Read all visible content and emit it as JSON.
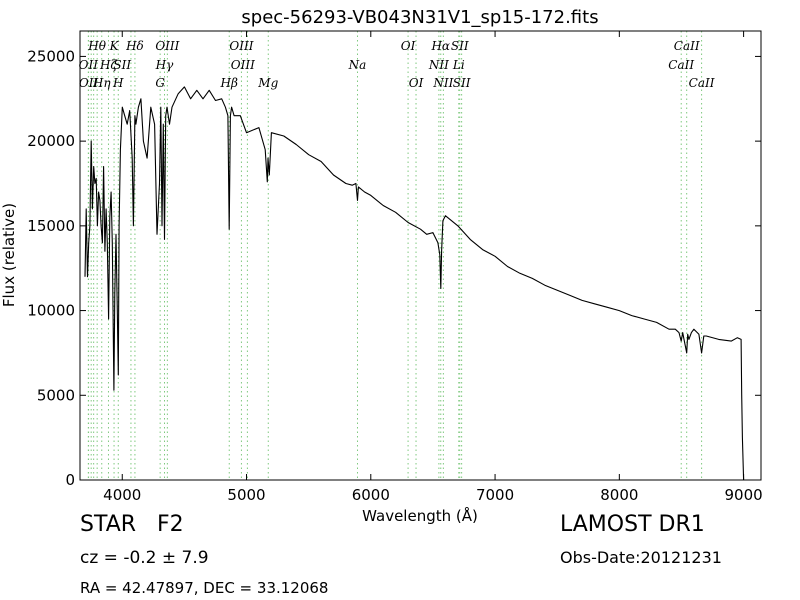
{
  "chart_data": {
    "type": "line",
    "title": "spec-56293-VB043N31V1_sp15-172.fits",
    "xlabel": "Wavelength (Å)",
    "ylabel": "Flux (relative)",
    "xlim": [
      3660,
      9140
    ],
    "ylim": [
      0,
      26500
    ],
    "xticks": [
      4000,
      5000,
      6000,
      7000,
      8000,
      9000
    ],
    "yticks": [
      0,
      5000,
      10000,
      15000,
      20000,
      25000
    ],
    "grid": false,
    "series": [
      {
        "x": [
          3700,
          3710,
          3720,
          3730,
          3740,
          3750,
          3760,
          3770,
          3780,
          3790,
          3800,
          3810,
          3820,
          3830,
          3840,
          3850,
          3860,
          3870,
          3880,
          3890,
          3900,
          3910,
          3920,
          3933,
          3940,
          3950,
          3960,
          3968,
          3975,
          3985,
          4000,
          4020,
          4040,
          4060,
          4080,
          4090,
          4102,
          4110,
          4130,
          4150,
          4170,
          4200,
          4230,
          4260,
          4280,
          4300,
          4310,
          4320,
          4330,
          4340,
          4350,
          4360,
          4380,
          4400,
          4450,
          4500,
          4550,
          4600,
          4650,
          4700,
          4750,
          4800,
          4830,
          4850,
          4861,
          4870,
          4880,
          4900,
          4950,
          5000,
          5100,
          5150,
          5167,
          5173,
          5183,
          5200,
          5300,
          5400,
          5500,
          5600,
          5700,
          5800,
          5850,
          5880,
          5893,
          5900,
          5950,
          6000,
          6100,
          6200,
          6300,
          6400,
          6450,
          6500,
          6540,
          6555,
          6563,
          6570,
          6580,
          6600,
          6700,
          6800,
          6900,
          7000,
          7100,
          7200,
          7300,
          7400,
          7500,
          7600,
          7700,
          7800,
          7900,
          8000,
          8100,
          8200,
          8300,
          8400,
          8450,
          8480,
          8498,
          8510,
          8520,
          8542,
          8550,
          8560,
          8580,
          8600,
          8640,
          8662,
          8680,
          8700,
          8800,
          8900,
          8950,
          8980,
          8985,
          8990,
          9000,
          9005
        ],
        "y": [
          12000,
          16000,
          12000,
          14000,
          15000,
          20000,
          16000,
          18500,
          17500,
          17800,
          15000,
          17000,
          16500,
          15000,
          14000,
          18500,
          13500,
          16000,
          14000,
          9500,
          15500,
          17000,
          14000,
          5300,
          11000,
          14500,
          10000,
          6200,
          15000,
          19500,
          22000,
          21500,
          21000,
          21800,
          19000,
          15000,
          21500,
          21000,
          22000,
          22500,
          20000,
          19000,
          22000,
          21000,
          14500,
          17500,
          22000,
          15000,
          21000,
          14200,
          21500,
          22000,
          21000,
          22000,
          22800,
          23200,
          22500,
          23000,
          22500,
          23000,
          22400,
          22500,
          22000,
          21500,
          14800,
          21500,
          22000,
          21500,
          21500,
          20500,
          20800,
          19500,
          17600,
          19000,
          18000,
          20500,
          20300,
          19800,
          19200,
          18800,
          18000,
          17500,
          17400,
          17500,
          16500,
          17300,
          17000,
          16800,
          16200,
          15800,
          15200,
          14800,
          14500,
          14600,
          14000,
          13300,
          11300,
          13500,
          15300,
          15600,
          15000,
          14200,
          13600,
          13200,
          12600,
          12200,
          11900,
          11500,
          11200,
          10900,
          10600,
          10400,
          10200,
          10000,
          9700,
          9500,
          9300,
          8900,
          8900,
          8700,
          8200,
          8700,
          8300,
          7500,
          8600,
          8300,
          8700,
          8900,
          8600,
          7500,
          8500,
          8500,
          8300,
          8200,
          8400,
          8300,
          5000,
          2500,
          0,
          0
        ]
      }
    ],
    "line_annotations": [
      {
        "label": "OII",
        "x": 3727,
        "row": 2
      },
      {
        "label": "OII",
        "x": 3729,
        "row": 3
      },
      {
        "label": "Hθ",
        "x": 3798,
        "row": 1
      },
      {
        "label": "Hη",
        "x": 3835,
        "row": 3
      },
      {
        "label": "Hζ",
        "x": 3889,
        "row": 2
      },
      {
        "label": "K",
        "x": 3934,
        "row": 1
      },
      {
        "label": "SII",
        "x": 4000,
        "row": 2
      },
      {
        "label": "H",
        "x": 3968,
        "row": 3
      },
      {
        "label": "Hδ",
        "x": 4102,
        "row": 1
      },
      {
        "label": "OIII",
        "x": 4363,
        "row": 1
      },
      {
        "label": "Hγ",
        "x": 4340,
        "row": 2
      },
      {
        "label": "G",
        "x": 4305,
        "row": 3
      },
      {
        "label": "OIII",
        "x": 4959,
        "row": 1
      },
      {
        "label": "OIII",
        "x": 4970,
        "row": 2
      },
      {
        "label": "Hβ",
        "x": 4861,
        "row": 3
      },
      {
        "label": "Mg",
        "x": 5175,
        "row": 3
      },
      {
        "label": "Na",
        "x": 5893,
        "row": 2
      },
      {
        "label": "OI",
        "x": 6300,
        "row": 1
      },
      {
        "label": "OI",
        "x": 6364,
        "row": 3
      },
      {
        "label": "Hα",
        "x": 6563,
        "row": 1
      },
      {
        "label": "SII",
        "x": 6716,
        "row": 1
      },
      {
        "label": "NII",
        "x": 6548,
        "row": 2
      },
      {
        "label": "Li",
        "x": 6708,
        "row": 2
      },
      {
        "label": "NII",
        "x": 6584,
        "row": 3
      },
      {
        "label": "SII",
        "x": 6731,
        "row": 3
      },
      {
        "label": "CaII",
        "x": 8542,
        "row": 1
      },
      {
        "label": "CaII",
        "x": 8498,
        "row": 2
      },
      {
        "label": "CaII",
        "x": 8662,
        "row": 3
      }
    ],
    "marker_lines_x": [
      3727,
      3729,
      3750,
      3770,
      3798,
      3835,
      3889,
      3934,
      3968,
      4070,
      4102,
      4305,
      4340,
      4363,
      4861,
      4959,
      5007,
      5175,
      5893,
      6300,
      6364,
      6548,
      6563,
      6584,
      6708,
      6716,
      6731,
      8498,
      8542,
      8662
    ]
  },
  "info": {
    "object": "STAR   F2",
    "survey": "LAMOST DR1",
    "redshift": "cz = -0.2 ± 7.9",
    "obs_date": "Obs-Date:20121231",
    "coords": "RA = 42.47897, DEC = 33.12068"
  },
  "colors": {
    "spectrum": "#000000",
    "marker_lines": "#7fc97f"
  }
}
